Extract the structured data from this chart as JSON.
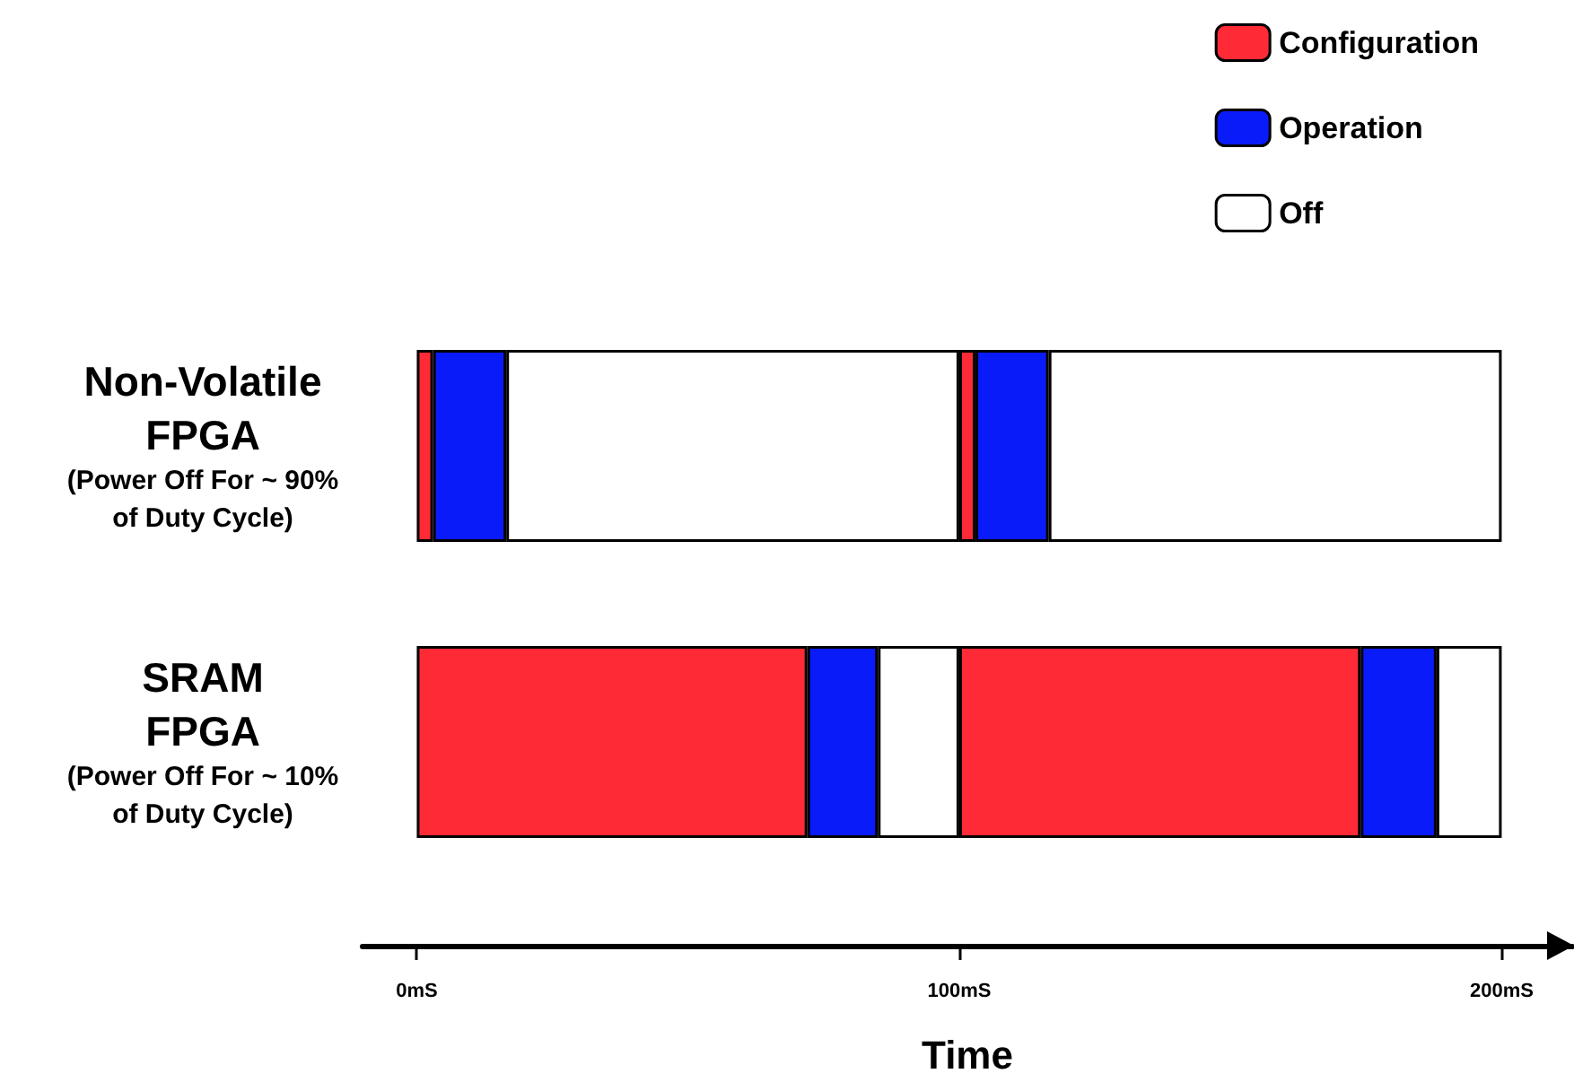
{
  "chart_data": {
    "type": "bar",
    "orientation": "horizontal",
    "stacked": true,
    "categories": [
      "Non-Volatile\nFPGA\n(Power Off For ~ 90%\nof Duty Cycle)",
      "SRAM\nFPGA\n(Power Off For ~ 10%\nof Duty Cycle)"
    ],
    "series": [
      {
        "name": "Configuration",
        "color": "#fe2a35",
        "values": [
          3,
          72
        ]
      },
      {
        "name": "Operation",
        "color": "#0a1bfa",
        "values": [
          13.5,
          13
        ]
      },
      {
        "name": "Off",
        "color": "#ffffff",
        "values": [
          83.5,
          15
        ]
      },
      {
        "color": "#fe2a35",
        "values": [
          3,
          74
        ]
      },
      {
        "color": "#0a1bfa",
        "values": [
          13.5,
          14
        ]
      },
      {
        "color": "#ffffff",
        "values": [
          83.5,
          12
        ]
      }
    ],
    "xlabel": "Time",
    "xlim": [
      -10,
      213
    ],
    "xticks": [
      {
        "value": 0,
        "label": "0mS"
      },
      {
        "value": 100,
        "label": "100mS"
      },
      {
        "value": 200,
        "label": "200mS"
      }
    ],
    "grid": false,
    "legend": "top right"
  }
}
